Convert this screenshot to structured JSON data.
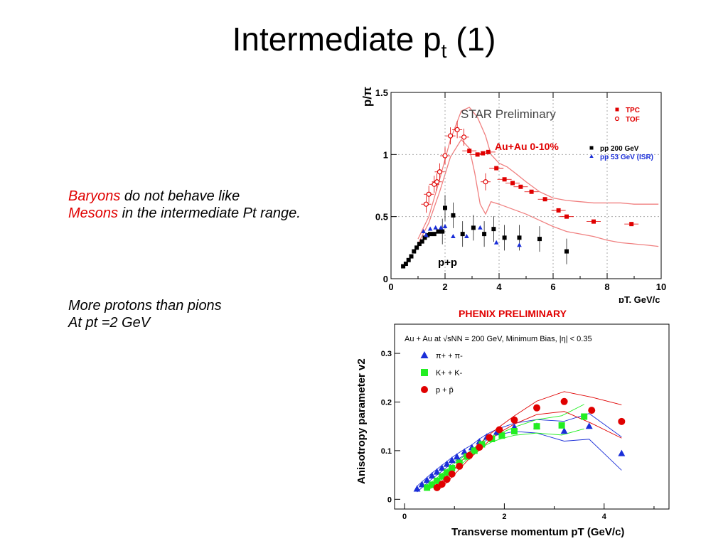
{
  "slide": {
    "title_main": "Intermediate p",
    "title_sub": "t",
    "title_end": " (1)"
  },
  "notes": {
    "baryons": "Baryons",
    "line1_rest": " do not behave like",
    "mesons": "Mesons",
    "line2_rest": " in the intermediate Pt range.",
    "protons_line1": "More protons than pions",
    "protons_line2": "At pt =2 GeV"
  },
  "colors": {
    "red": "#e00000",
    "blue": "#1a2ed8",
    "green": "#22ee22",
    "black": "#000000",
    "band": "#f08080"
  },
  "chart_data": [
    {
      "type": "scatter",
      "title": "STAR Preliminary",
      "xlabel": "pT, GeV/c",
      "ylabel": "p/π",
      "xlim": [
        0,
        10
      ],
      "ylim": [
        0,
        1.5
      ],
      "xticks": [
        0,
        2,
        4,
        6,
        8,
        10
      ],
      "yticks": [
        0,
        0.5,
        1,
        1.5
      ],
      "legend": "top-right",
      "annotations": {
        "auau": "Au+Au 0-10%",
        "pp_label": "p+p"
      },
      "series": [
        {
          "name": "TPC",
          "marker": "filled-square",
          "color": "#e00000",
          "x": [
            2.9,
            3.2,
            3.4,
            3.6,
            3.9,
            4.2,
            4.5,
            4.8,
            5.2,
            5.7,
            6.2,
            6.5,
            7.5,
            8.9
          ],
          "y": [
            1.03,
            1.0,
            1.01,
            1.02,
            0.89,
            0.8,
            0.77,
            0.74,
            0.7,
            0.64,
            0.55,
            0.5,
            0.46,
            0.44
          ]
        },
        {
          "name": "TOF",
          "marker": "open-circle",
          "color": "#e00000",
          "x": [
            1.3,
            1.4,
            1.6,
            1.7,
            1.8,
            2.0,
            2.2,
            2.45,
            2.7,
            3.5
          ],
          "y": [
            0.6,
            0.68,
            0.76,
            0.78,
            0.86,
            0.99,
            1.15,
            1.2,
            1.14,
            0.78
          ]
        },
        {
          "name": "pp 200 GeV",
          "marker": "filled-square",
          "color": "#000000",
          "x": [
            0.45,
            0.55,
            0.65,
            0.75,
            0.85,
            0.95,
            1.05,
            1.15,
            1.25,
            1.35,
            1.45,
            1.6,
            1.75,
            1.9,
            2.0,
            2.3,
            2.65,
            3.05,
            3.45,
            3.8,
            4.2,
            4.75,
            5.5,
            6.5
          ],
          "y": [
            0.1,
            0.12,
            0.15,
            0.18,
            0.22,
            0.25,
            0.28,
            0.3,
            0.33,
            0.35,
            0.36,
            0.36,
            0.38,
            0.38,
            0.57,
            0.51,
            0.36,
            0.41,
            0.36,
            0.4,
            0.33,
            0.33,
            0.32,
            0.22
          ]
        },
        {
          "name": "pp 53 GeV (ISR)",
          "marker": "filled-triangle",
          "color": "#1a2ed8",
          "x": [
            1.2,
            1.3,
            1.45,
            1.65,
            1.85,
            2.0,
            2.3,
            2.8,
            3.3,
            3.9,
            4.75
          ],
          "y": [
            0.38,
            0.35,
            0.4,
            0.41,
            0.41,
            0.42,
            0.34,
            0.34,
            0.41,
            0.29,
            0.27
          ]
        }
      ],
      "bands": {
        "upper": {
          "x": [
            1.0,
            1.4,
            1.8,
            2.2,
            2.6,
            2.9,
            3.2,
            3.5,
            3.7,
            4.0,
            4.3,
            4.6,
            5.0,
            5.5,
            6.0,
            6.5,
            7.0,
            7.5,
            8.0,
            8.5,
            9.0,
            9.5,
            9.9
          ],
          "y": [
            0.32,
            0.5,
            0.8,
            1.12,
            1.35,
            1.38,
            1.3,
            1.15,
            1.0,
            0.93,
            0.9,
            0.85,
            0.78,
            0.7,
            0.65,
            0.63,
            0.62,
            0.61,
            0.61,
            0.61,
            0.6,
            0.6,
            0.6
          ]
        },
        "lower": {
          "x": [
            1.0,
            1.4,
            1.8,
            2.2,
            2.6,
            2.9,
            3.1,
            3.3,
            3.5,
            3.7,
            4.0,
            4.5,
            5.0,
            5.5,
            6.0,
            6.5,
            7.0,
            7.5,
            8.0,
            8.5,
            9.0,
            9.5,
            9.9
          ],
          "y": [
            0.28,
            0.45,
            0.7,
            0.98,
            1.12,
            1.05,
            0.85,
            0.6,
            0.52,
            0.62,
            0.6,
            0.56,
            0.52,
            0.47,
            0.42,
            0.38,
            0.36,
            0.34,
            0.31,
            0.29,
            0.28,
            0.27,
            0.26
          ]
        }
      }
    },
    {
      "type": "scatter",
      "title": "PHENIX PRELIMINARY",
      "header": "Au + Au at √sNN = 200 GeV, Minimum Bias, |η| < 0.35",
      "xlabel": "Transverse momentum pT (GeV/c)",
      "ylabel": "Anisotropy parameter v2",
      "xlim": [
        -0.2,
        5.3
      ],
      "ylim": [
        -0.02,
        0.36
      ],
      "xticks": [
        0,
        2,
        4
      ],
      "yticks": [
        0,
        0.1,
        0.2,
        0.3
      ],
      "legend": "top-left",
      "series": [
        {
          "name": "π+ + π-",
          "marker": "filled-triangle",
          "color": "#1a2ed8",
          "x": [
            0.25,
            0.35,
            0.45,
            0.55,
            0.65,
            0.75,
            0.85,
            0.95,
            1.05,
            1.2,
            1.35,
            1.5,
            1.65,
            1.85,
            2.2,
            2.65,
            3.2,
            3.7,
            4.35
          ],
          "y": [
            0.021,
            0.03,
            0.039,
            0.048,
            0.056,
            0.064,
            0.072,
            0.08,
            0.087,
            0.097,
            0.106,
            0.118,
            0.128,
            0.138,
            0.148,
            0.15,
            0.14,
            0.15,
            0.094
          ]
        },
        {
          "name": "K+ + K-",
          "marker": "filled-square",
          "color": "#22ee22",
          "x": [
            0.45,
            0.55,
            0.65,
            0.75,
            0.85,
            0.95,
            1.1,
            1.25,
            1.4,
            1.55,
            1.75,
            1.95,
            2.2,
            2.65,
            3.15,
            3.6
          ],
          "y": [
            0.024,
            0.03,
            0.038,
            0.047,
            0.055,
            0.064,
            0.075,
            0.088,
            0.1,
            0.113,
            0.124,
            0.131,
            0.14,
            0.15,
            0.152,
            0.17
          ]
        },
        {
          "name": "p + p̄",
          "marker": "filled-circle",
          "color": "#e00000",
          "x": [
            0.65,
            0.75,
            0.85,
            0.95,
            1.1,
            1.3,
            1.5,
            1.7,
            1.9,
            2.2,
            2.65,
            3.2,
            3.75,
            4.35
          ],
          "y": [
            0.024,
            0.031,
            0.041,
            0.052,
            0.068,
            0.09,
            0.107,
            0.127,
            0.143,
            0.163,
            0.188,
            0.201,
            0.183,
            0.16
          ]
        }
      ]
    }
  ]
}
